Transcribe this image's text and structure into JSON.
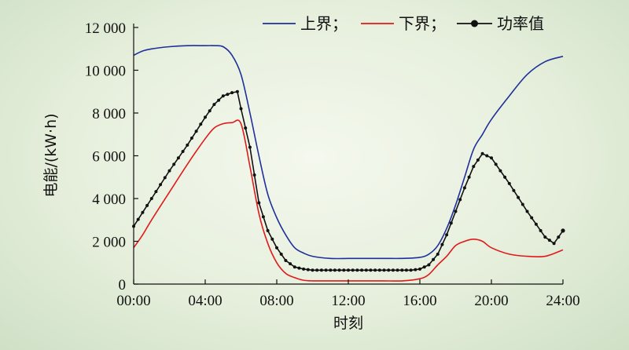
{
  "chart_data": {
    "type": "line",
    "xlabel": "时刻",
    "ylabel": "电能/(kW·h)",
    "x_ticks": [
      "00:00",
      "04:00",
      "08:00",
      "12:00",
      "16:00",
      "20:00",
      "24:00"
    ],
    "y_ticks": [
      "0",
      "2 000",
      "4 000",
      "6 000",
      "8 000",
      "10 000",
      "12 000"
    ],
    "xlim": [
      0,
      24
    ],
    "ylim": [
      0,
      12000
    ],
    "grid": false,
    "legend_position": "top-right",
    "series": [
      {
        "name": "上界；",
        "color": "#1f2f9c",
        "marker": false,
        "x": [
          0,
          0.5,
          1,
          2,
          3,
          4,
          4.5,
          5,
          5.5,
          6,
          6.5,
          7,
          7.5,
          8,
          8.5,
          9,
          9.5,
          10,
          11,
          12,
          13,
          14,
          15,
          16,
          16.5,
          17,
          17.5,
          18,
          18.5,
          19,
          19.5,
          20,
          21,
          22,
          23,
          24
        ],
        "y": [
          10700,
          10900,
          11000,
          11100,
          11150,
          11150,
          11150,
          11100,
          10700,
          9800,
          8000,
          6000,
          4200,
          3100,
          2300,
          1700,
          1450,
          1300,
          1200,
          1200,
          1200,
          1200,
          1200,
          1250,
          1400,
          1800,
          2600,
          3700,
          5000,
          6300,
          7000,
          7700,
          8800,
          9800,
          10400,
          10650
        ]
      },
      {
        "name": "下界；",
        "color": "#e01a1a",
        "marker": false,
        "x": [
          0,
          0.5,
          1,
          2,
          3,
          4,
          4.5,
          5,
          5.5,
          6,
          6.5,
          7,
          7.5,
          8,
          8.5,
          9,
          9.5,
          10,
          11,
          12,
          13,
          14,
          15,
          16,
          16.5,
          17,
          17.5,
          18,
          18.5,
          19,
          19.5,
          20,
          21,
          22,
          23,
          24
        ],
        "y": [
          1700,
          2300,
          3000,
          4300,
          5600,
          6800,
          7300,
          7500,
          7550,
          7500,
          5500,
          3300,
          1900,
          1000,
          500,
          300,
          180,
          150,
          150,
          150,
          150,
          150,
          150,
          250,
          450,
          900,
          1300,
          1800,
          2000,
          2100,
          2000,
          1700,
          1400,
          1300,
          1300,
          1600
        ]
      },
      {
        "name": "功率值",
        "color": "#111111",
        "marker": true,
        "x": [
          0,
          1,
          2,
          3,
          4,
          4.5,
          5,
          5.5,
          5.8,
          6,
          6.5,
          7,
          7.5,
          8,
          8.5,
          9,
          9.5,
          10,
          11,
          12,
          13,
          14,
          15,
          15.5,
          16,
          16.5,
          17,
          17.5,
          18,
          18.5,
          19,
          19.5,
          20,
          21,
          22,
          23,
          23.5,
          24
        ],
        "y": [
          2700,
          4000,
          5300,
          6500,
          7800,
          8400,
          8800,
          8950,
          9000,
          8200,
          6400,
          3800,
          2500,
          1700,
          1100,
          800,
          700,
          650,
          650,
          650,
          650,
          650,
          650,
          650,
          700,
          900,
          1400,
          2300,
          3400,
          4500,
          5500,
          6100,
          5900,
          4700,
          3400,
          2200,
          1900,
          2500
        ]
      }
    ]
  }
}
